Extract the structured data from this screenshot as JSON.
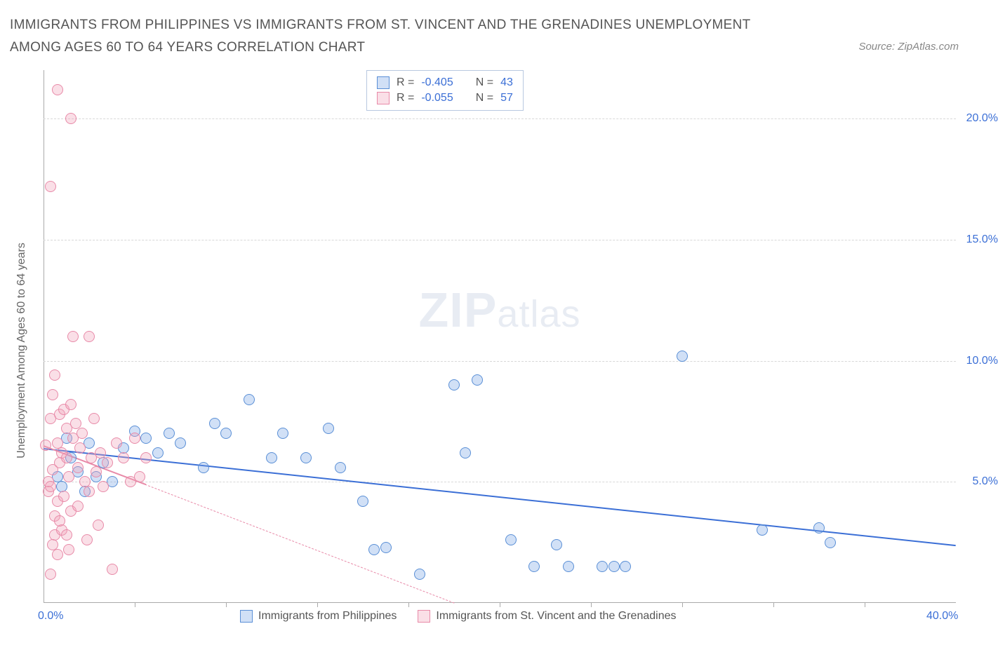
{
  "title": "IMMIGRANTS FROM PHILIPPINES VS IMMIGRANTS FROM ST. VINCENT AND THE GRENADINES UNEMPLOYMENT AMONG AGES 60 TO 64 YEARS CORRELATION CHART",
  "source_label": "Source: ZipAtlas.com",
  "y_axis_label": "Unemployment Among Ages 60 to 64 years",
  "chart": {
    "type": "scatter",
    "background_color": "#ffffff",
    "grid_color": "#d8d8d8",
    "axis_color": "#aaaaaa",
    "ylim": [
      0,
      22
    ],
    "y_ticks": [
      {
        "value": 5.0,
        "label": "5.0%"
      },
      {
        "value": 10.0,
        "label": "10.0%"
      },
      {
        "value": 15.0,
        "label": "15.0%"
      },
      {
        "value": 20.0,
        "label": "20.0%"
      }
    ],
    "xlim": [
      0,
      40
    ],
    "x_ticks": [
      {
        "value": 0.0,
        "label": "0.0%"
      },
      {
        "value": 40.0,
        "label": "40.0%"
      }
    ],
    "x_minor_ticks": [
      4,
      8,
      12,
      16,
      20,
      24,
      28,
      32,
      36
    ],
    "point_radius": 8,
    "series": [
      {
        "name": "Immigrants from Philippines",
        "color": "#5a8fd6",
        "fill": "rgba(123,167,230,0.35)",
        "class": "blue",
        "R": "-0.405",
        "N": "43",
        "trend": {
          "x1": 0,
          "y1": 6.4,
          "x2": 40,
          "y2": 2.4,
          "style": "solid"
        },
        "points": [
          [
            0.6,
            5.2
          ],
          [
            0.8,
            4.8
          ],
          [
            1.0,
            6.8
          ],
          [
            1.2,
            6.0
          ],
          [
            1.5,
            5.4
          ],
          [
            1.8,
            4.6
          ],
          [
            2.0,
            6.6
          ],
          [
            2.3,
            5.2
          ],
          [
            2.6,
            5.8
          ],
          [
            3.0,
            5.0
          ],
          [
            3.5,
            6.4
          ],
          [
            4.0,
            7.1
          ],
          [
            4.5,
            6.8
          ],
          [
            5.0,
            6.2
          ],
          [
            5.5,
            7.0
          ],
          [
            6.0,
            6.6
          ],
          [
            7.0,
            5.6
          ],
          [
            7.5,
            7.4
          ],
          [
            8.0,
            7.0
          ],
          [
            9.0,
            8.4
          ],
          [
            10.0,
            6.0
          ],
          [
            10.5,
            7.0
          ],
          [
            11.5,
            6.0
          ],
          [
            12.5,
            7.2
          ],
          [
            13.0,
            5.6
          ],
          [
            14.0,
            4.2
          ],
          [
            14.5,
            2.2
          ],
          [
            15.0,
            2.3
          ],
          [
            16.5,
            1.2
          ],
          [
            18.0,
            9.0
          ],
          [
            18.5,
            6.2
          ],
          [
            19.0,
            9.2
          ],
          [
            20.5,
            2.6
          ],
          [
            21.5,
            1.5
          ],
          [
            22.5,
            2.4
          ],
          [
            23.0,
            1.5
          ],
          [
            24.5,
            1.5
          ],
          [
            25.0,
            1.5
          ],
          [
            25.5,
            1.5
          ],
          [
            28.0,
            10.2
          ],
          [
            31.5,
            3.0
          ],
          [
            34.0,
            3.1
          ],
          [
            34.5,
            2.5
          ]
        ]
      },
      {
        "name": "Immigrants from St. Vincent and the Grenadines",
        "color": "#e88aa8",
        "fill": "rgba(241,163,186,0.35)",
        "class": "pink",
        "R": "-0.055",
        "N": "57",
        "trend": {
          "x1": 0,
          "y1": 6.5,
          "x2": 18,
          "y2": 0.0,
          "style": "dashed"
        },
        "trend_solid_end": {
          "x1": 0,
          "y1": 6.5,
          "x2": 4.5,
          "y2": 4.9
        },
        "points": [
          [
            0.1,
            6.5
          ],
          [
            0.2,
            5.0
          ],
          [
            0.2,
            4.6
          ],
          [
            0.3,
            7.6
          ],
          [
            0.3,
            4.8
          ],
          [
            0.4,
            8.6
          ],
          [
            0.4,
            5.5
          ],
          [
            0.5,
            9.4
          ],
          [
            0.5,
            3.6
          ],
          [
            0.5,
            2.8
          ],
          [
            0.6,
            6.6
          ],
          [
            0.6,
            4.2
          ],
          [
            0.7,
            5.8
          ],
          [
            0.7,
            7.8
          ],
          [
            0.8,
            6.2
          ],
          [
            0.8,
            3.0
          ],
          [
            0.9,
            8.0
          ],
          [
            0.9,
            4.4
          ],
          [
            1.0,
            6.0
          ],
          [
            1.0,
            7.2
          ],
          [
            1.1,
            5.2
          ],
          [
            1.1,
            2.2
          ],
          [
            1.2,
            8.2
          ],
          [
            1.2,
            3.8
          ],
          [
            1.3,
            11.0
          ],
          [
            1.3,
            6.8
          ],
          [
            1.4,
            7.4
          ],
          [
            1.5,
            5.6
          ],
          [
            1.5,
            4.0
          ],
          [
            1.6,
            6.4
          ],
          [
            1.7,
            7.0
          ],
          [
            1.8,
            5.0
          ],
          [
            1.9,
            2.6
          ],
          [
            2.0,
            11.0
          ],
          [
            2.0,
            4.6
          ],
          [
            2.1,
            6.0
          ],
          [
            2.2,
            7.6
          ],
          [
            2.3,
            5.4
          ],
          [
            2.4,
            3.2
          ],
          [
            2.5,
            6.2
          ],
          [
            2.6,
            4.8
          ],
          [
            2.8,
            5.8
          ],
          [
            3.0,
            1.4
          ],
          [
            3.2,
            6.6
          ],
          [
            3.5,
            6.0
          ],
          [
            3.8,
            5.0
          ],
          [
            4.0,
            6.8
          ],
          [
            4.2,
            5.2
          ],
          [
            4.5,
            6.0
          ],
          [
            0.3,
            1.2
          ],
          [
            0.4,
            2.4
          ],
          [
            0.6,
            2.0
          ],
          [
            0.6,
            21.2
          ],
          [
            1.2,
            20.0
          ],
          [
            0.3,
            17.2
          ],
          [
            1.0,
            2.8
          ],
          [
            0.7,
            3.4
          ]
        ]
      }
    ]
  },
  "legend_stats": {
    "rows": [
      {
        "class": "blue",
        "R_label": "R =",
        "R": "-0.405",
        "N_label": "N =",
        "N": "43"
      },
      {
        "class": "pink",
        "R_label": "R =",
        "R": "-0.055",
        "N_label": "N =",
        "N": "57"
      }
    ]
  },
  "bottom_legend": [
    {
      "class": "blue",
      "label": "Immigrants from Philippines"
    },
    {
      "class": "pink",
      "label": "Immigrants from St. Vincent and the Grenadines"
    }
  ],
  "watermark": {
    "zip": "ZIP",
    "atlas": "atlas"
  }
}
